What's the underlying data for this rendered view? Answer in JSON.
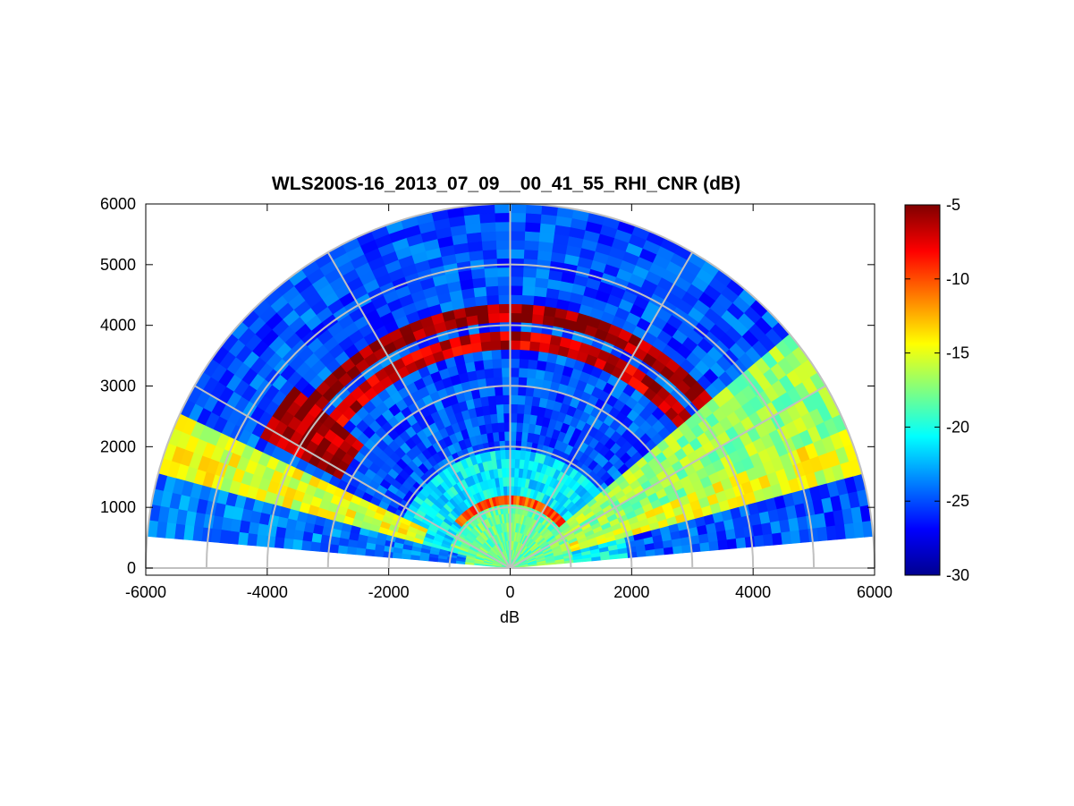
{
  "chart_data": {
    "type": "heatmap",
    "projection": "polar-half",
    "title": "WLS200S-16_2013_07_09__00_41_55_RHI_CNR (dB)",
    "xlabel": "dB",
    "ylabel": "",
    "xlim": [
      -6000,
      6000
    ],
    "ylim": [
      0,
      6000
    ],
    "xticks": [
      "-6000",
      "-4000",
      "-2000",
      "0",
      "2000",
      "4000",
      "6000"
    ],
    "yticks": [
      "0",
      "1000",
      "2000",
      "3000",
      "4000",
      "5000",
      "6000"
    ],
    "polar_grid": {
      "range_rings": [
        1000,
        2000,
        3000,
        4000,
        5000,
        6000
      ],
      "spoke_angles_deg": [
        0,
        30,
        60,
        90,
        120,
        150,
        180
      ]
    },
    "colorbar": {
      "colormap": "jet",
      "min": -30,
      "max": -5,
      "ticks": [
        "-5",
        "-10",
        "-15",
        "-20",
        "-25",
        "-30"
      ]
    },
    "regions": [
      {
        "name": "background",
        "elev_deg": [
          5,
          175
        ],
        "range_m": [
          0,
          6000
        ],
        "cnr_db": -25
      },
      {
        "name": "near-field",
        "elev_deg": [
          5,
          175
        ],
        "range_m": [
          0,
          1000
        ],
        "cnr_db": -18
      },
      {
        "name": "transition",
        "elev_deg": [
          5,
          175
        ],
        "range_m": [
          1000,
          1900
        ],
        "cnr_db": -21
      },
      {
        "name": "low-layer",
        "elev_deg": [
          40,
          140
        ],
        "range_m": [
          1000,
          1200
        ],
        "cnr_db": -10
      },
      {
        "name": "cloud-upper",
        "elev_deg": [
          40,
          140
        ],
        "range_m": [
          4100,
          4400
        ],
        "cnr_db": -6
      },
      {
        "name": "cloud-lower",
        "elev_deg": [
          40,
          140
        ],
        "range_m": [
          3600,
          3950
        ],
        "cnr_db": -7
      },
      {
        "name": "cloud-west",
        "elev_deg": [
          140,
          152
        ],
        "range_m": [
          3200,
          4700
        ],
        "cnr_db": -6
      },
      {
        "name": "beam-northeast",
        "elev_deg": [
          22,
          40
        ],
        "range_m": [
          900,
          6000
        ],
        "cnr_db": -17
      },
      {
        "name": "beam-east",
        "elev_deg": [
          16,
          22
        ],
        "range_m": [
          1000,
          6000
        ],
        "cnr_db": -15
      },
      {
        "name": "beam-west",
        "elev_deg": [
          155,
          165
        ],
        "range_m": [
          1500,
          6000
        ],
        "cnr_db": -15
      },
      {
        "name": "beam-west-low",
        "elev_deg": [
          165,
          175
        ],
        "range_m": [
          800,
          6000
        ],
        "cnr_db": -24
      }
    ]
  }
}
